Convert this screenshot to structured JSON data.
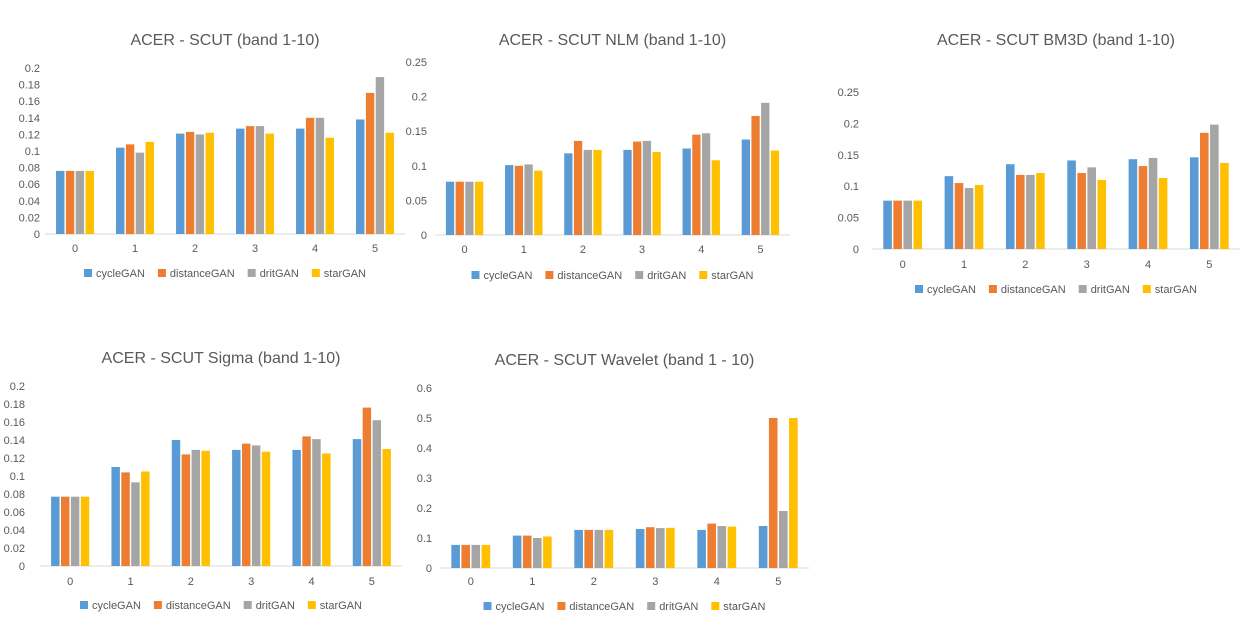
{
  "colors": {
    "cycleGAN": "#5B9BD5",
    "distanceGAN": "#ED7D31",
    "dritGAN": "#A5A5A5",
    "starGAN": "#FFC000",
    "axis": "#d9d9d9",
    "text": "#595959"
  },
  "chart_data": [
    {
      "type": "bar",
      "title": "ACER - SCUT (band 1-10)",
      "categories": [
        "0",
        "1",
        "2",
        "3",
        "4",
        "5"
      ],
      "yticks": [
        "0",
        "0.02",
        "0.04",
        "0.06",
        "0.08",
        "0.1",
        "0.12",
        "0.14",
        "0.16",
        "0.18",
        "0.2"
      ],
      "ylim": [
        0,
        0.2
      ],
      "legend": "bottom",
      "series": [
        {
          "name": "cycleGAN",
          "values": [
            0.076,
            0.104,
            0.121,
            0.127,
            0.127,
            0.138
          ]
        },
        {
          "name": "distanceGAN",
          "values": [
            0.076,
            0.108,
            0.123,
            0.13,
            0.14,
            0.17
          ]
        },
        {
          "name": "dritGAN",
          "values": [
            0.076,
            0.098,
            0.12,
            0.13,
            0.14,
            0.189
          ]
        },
        {
          "name": "starGAN",
          "values": [
            0.076,
            0.111,
            0.122,
            0.121,
            0.116,
            0.122
          ]
        }
      ]
    },
    {
      "type": "bar",
      "title": "ACER - SCUT NLM (band 1-10)",
      "categories": [
        "0",
        "1",
        "2",
        "3",
        "4",
        "5"
      ],
      "yticks": [
        "0",
        "0.05",
        "0.1",
        "0.15",
        "0.2",
        "0.25"
      ],
      "ylim": [
        0,
        0.25
      ],
      "legend": "bottom",
      "series": [
        {
          "name": "cycleGAN",
          "values": [
            0.077,
            0.101,
            0.118,
            0.123,
            0.125,
            0.138
          ]
        },
        {
          "name": "distanceGAN",
          "values": [
            0.077,
            0.1,
            0.136,
            0.135,
            0.145,
            0.172
          ]
        },
        {
          "name": "dritGAN",
          "values": [
            0.077,
            0.102,
            0.123,
            0.136,
            0.147,
            0.191
          ]
        },
        {
          "name": "starGAN",
          "values": [
            0.077,
            0.093,
            0.123,
            0.12,
            0.108,
            0.122
          ]
        }
      ]
    },
    {
      "type": "bar",
      "title": "ACER - SCUT BM3D (band 1-10)",
      "categories": [
        "0",
        "1",
        "2",
        "3",
        "4",
        "5"
      ],
      "yticks": [
        "0",
        "0.05",
        "0.1",
        "0.15",
        "0.2",
        "0.25"
      ],
      "ylim": [
        0,
        0.25
      ],
      "legend": "bottom",
      "series": [
        {
          "name": "cycleGAN",
          "values": [
            0.077,
            0.116,
            0.135,
            0.141,
            0.143,
            0.146
          ]
        },
        {
          "name": "distanceGAN",
          "values": [
            0.077,
            0.105,
            0.118,
            0.121,
            0.132,
            0.185
          ]
        },
        {
          "name": "dritGAN",
          "values": [
            0.077,
            0.097,
            0.118,
            0.13,
            0.145,
            0.198
          ]
        },
        {
          "name": "starGAN",
          "values": [
            0.077,
            0.102,
            0.121,
            0.11,
            0.113,
            0.137
          ]
        }
      ]
    },
    {
      "type": "bar",
      "title": "ACER - SCUT Sigma (band 1-10)",
      "categories": [
        "0",
        "1",
        "2",
        "3",
        "4",
        "5"
      ],
      "yticks": [
        "0",
        "0.02",
        "0.04",
        "0.06",
        "0.08",
        "0.1",
        "0.12",
        "0.14",
        "0.16",
        "0.18",
        "0.2"
      ],
      "ylim": [
        0,
        0.2
      ],
      "legend": "bottom",
      "series": [
        {
          "name": "cycleGAN",
          "values": [
            0.077,
            0.11,
            0.14,
            0.129,
            0.129,
            0.141
          ]
        },
        {
          "name": "distanceGAN",
          "values": [
            0.077,
            0.104,
            0.124,
            0.136,
            0.144,
            0.176
          ]
        },
        {
          "name": "dritGAN",
          "values": [
            0.077,
            0.093,
            0.129,
            0.134,
            0.141,
            0.162
          ]
        },
        {
          "name": "starGAN",
          "values": [
            0.077,
            0.105,
            0.128,
            0.127,
            0.125,
            0.13
          ]
        }
      ]
    },
    {
      "type": "bar",
      "title": "ACER - SCUT Wavelet (band 1 - 10)",
      "categories": [
        "0",
        "1",
        "2",
        "3",
        "4",
        "5"
      ],
      "yticks": [
        "0",
        "0.1",
        "0.2",
        "0.3",
        "0.4",
        "0.5",
        "0.6"
      ],
      "ylim": [
        0,
        0.6
      ],
      "legend": "bottom",
      "series": [
        {
          "name": "cycleGAN",
          "values": [
            0.077,
            0.108,
            0.127,
            0.13,
            0.127,
            0.14
          ]
        },
        {
          "name": "distanceGAN",
          "values": [
            0.077,
            0.108,
            0.127,
            0.136,
            0.148,
            0.5
          ]
        },
        {
          "name": "dritGAN",
          "values": [
            0.077,
            0.1,
            0.127,
            0.133,
            0.14,
            0.19
          ]
        },
        {
          "name": "starGAN",
          "values": [
            0.077,
            0.105,
            0.127,
            0.134,
            0.138,
            0.5
          ]
        }
      ]
    }
  ]
}
